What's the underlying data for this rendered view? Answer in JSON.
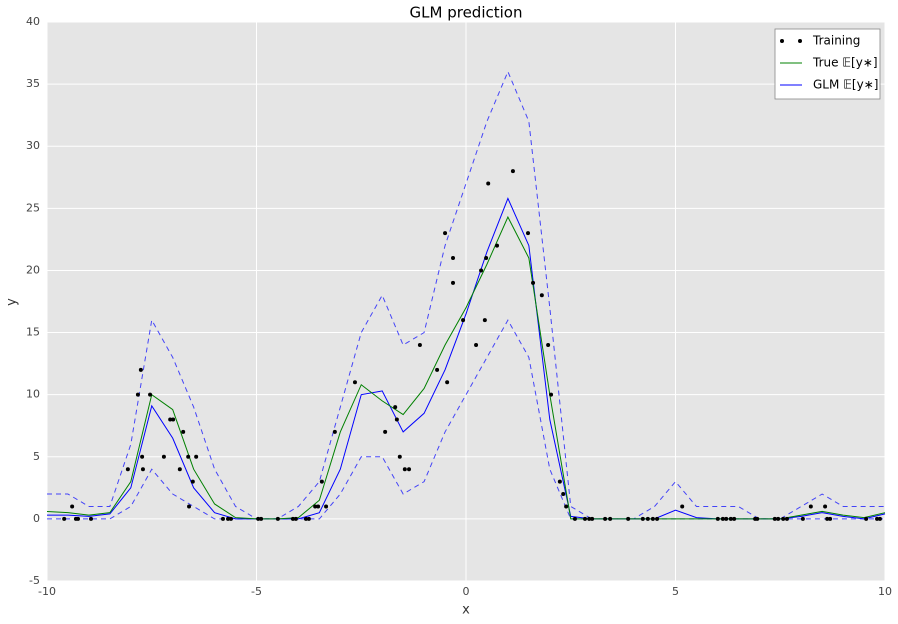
{
  "chart_data": {
    "type": "line",
    "title": "GLM prediction",
    "x_label": "x",
    "y_label": "y",
    "xlim": [
      -10,
      10
    ],
    "ylim": [
      -5,
      40
    ],
    "xticks": [
      -10,
      -5,
      0,
      5,
      10
    ],
    "yticks": [
      -5,
      0,
      5,
      10,
      15,
      20,
      25,
      30,
      35,
      40
    ],
    "grid": true,
    "legend": "upper right",
    "x": [
      -10,
      -9.5,
      -9,
      -8.5,
      -8,
      -7.5,
      -7,
      -6.5,
      -6,
      -5.5,
      -5,
      -4.5,
      -4,
      -3.5,
      -3,
      -2.5,
      -2,
      -1.5,
      -1,
      -0.5,
      0,
      0.5,
      1,
      1.5,
      2,
      2.5,
      3,
      3.5,
      4,
      4.5,
      5,
      5.5,
      6,
      6.5,
      7,
      7.5,
      8,
      8.5,
      9,
      9.5,
      10
    ],
    "series": [
      {
        "name": "Training",
        "color": "#000000",
        "marker": "dot",
        "x": [
          -9.59,
          -9.4,
          -9.31,
          -9.26,
          -8.95,
          -8.07,
          -7.83,
          -7.76,
          -7.73,
          -7.71,
          -7.54,
          -7.21,
          -7.06,
          -6.99,
          -6.83,
          -6.75,
          -6.63,
          -6.61,
          -6.52,
          -6.44,
          -5.8,
          -5.68,
          -5.61,
          -4.96,
          -4.89,
          -4.49,
          -4.13,
          -4.06,
          -3.82,
          -3.75,
          -3.6,
          -3.53,
          -3.44,
          -3.34,
          -3.13,
          -2.65,
          -1.93,
          -1.69,
          -1.65,
          -1.58,
          -1.46,
          -1.36,
          -1.1,
          -0.69,
          -0.5,
          -0.45,
          -0.31,
          -0.31,
          -0.07,
          0.24,
          0.36,
          0.45,
          0.48,
          0.53,
          0.74,
          1.12,
          1.48,
          1.6,
          1.81,
          1.96,
          2.03,
          2.24,
          2.32,
          2.39,
          2.6,
          2.84,
          2.94,
          3.01,
          3.32,
          3.44,
          3.87,
          4.22,
          4.34,
          4.46,
          4.56,
          5.16,
          6.01,
          6.13,
          6.21,
          6.32,
          6.4,
          6.9,
          6.95,
          7.37,
          7.45,
          7.57,
          7.66,
          8.04,
          8.23,
          8.57,
          8.62,
          8.69,
          9.55,
          9.81,
          9.88
        ],
        "values": [
          0,
          1,
          0,
          0,
          0,
          4,
          10,
          12,
          5,
          4,
          10,
          5,
          8,
          8,
          4,
          7,
          5,
          1,
          3,
          5,
          0,
          0,
          0,
          0,
          0,
          0,
          0,
          0,
          0,
          0,
          1,
          1,
          3,
          1,
          7,
          11,
          7,
          9,
          8,
          5,
          4,
          4,
          14,
          12,
          23,
          11,
          21,
          19,
          16,
          14,
          20,
          16,
          21,
          27,
          22,
          28,
          23,
          19,
          18,
          14,
          10,
          3,
          2,
          1,
          0,
          0,
          0,
          0,
          0,
          0,
          0,
          0,
          0,
          0,
          0,
          1,
          0,
          0,
          0,
          0,
          0,
          0,
          0,
          0,
          0,
          0,
          0,
          0,
          1,
          1,
          0,
          0,
          0,
          0,
          0
        ]
      },
      {
        "name": "True 𝔼[y∗]",
        "color": "#008000",
        "values": [
          0.6,
          0.5,
          0.3,
          0.5,
          3,
          10,
          8.8,
          4,
          1.2,
          0.1,
          0,
          0,
          0.1,
          1.5,
          7,
          10.8,
          9.5,
          8.4,
          10.5,
          14,
          17,
          20.5,
          24.3,
          21,
          10,
          0,
          0,
          0,
          0,
          0,
          0,
          0,
          0,
          0,
          0,
          0,
          0.3,
          0.6,
          0.3,
          0.1,
          0.5
        ]
      },
      {
        "name": "GLM 𝔼[y∗]",
        "color": "#0000ff",
        "values": [
          0.3,
          0.3,
          0.2,
          0.4,
          2.5,
          9.1,
          6.5,
          2.5,
          0.5,
          0,
          0,
          0,
          0,
          0.5,
          4,
          10,
          10.3,
          7,
          8.5,
          12,
          16.5,
          21.5,
          25.8,
          22,
          8,
          0.2,
          0,
          0,
          0,
          0,
          0.7,
          0.1,
          0,
          0,
          0,
          0,
          0.2,
          0.5,
          0.2,
          0,
          0.4
        ]
      },
      {
        "color": "#0000ff",
        "dash": true,
        "values": [
          2,
          2,
          1,
          1,
          6,
          16,
          13,
          9,
          4,
          1,
          0,
          0,
          1,
          3,
          9,
          15,
          18,
          14,
          15,
          22,
          27,
          32,
          36,
          32,
          17,
          1,
          0,
          0,
          0,
          1,
          3,
          1,
          1,
          1,
          0,
          0,
          1,
          2,
          1,
          1,
          1
        ]
      },
      {
        "color": "#0000ff",
        "dash": true,
        "values": [
          0,
          0,
          0,
          0,
          1,
          4,
          2,
          1,
          0,
          0,
          0,
          0,
          0,
          0,
          2,
          5,
          5,
          2,
          3,
          7,
          10,
          13,
          16,
          13,
          4,
          0,
          0,
          0,
          0,
          0,
          0,
          0,
          0,
          0,
          0,
          0,
          0,
          0,
          0,
          0,
          0
        ]
      }
    ]
  }
}
